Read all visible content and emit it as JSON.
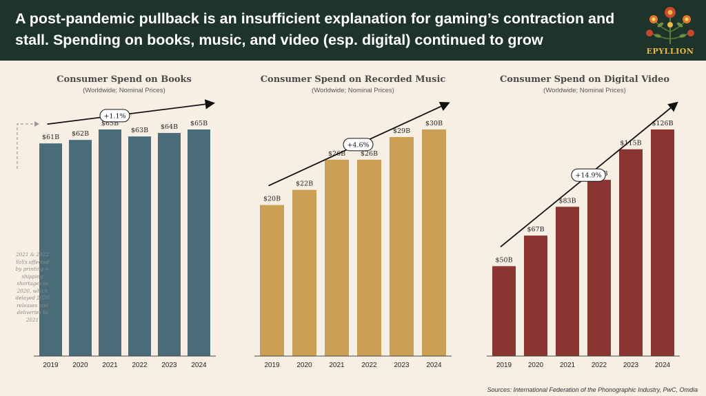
{
  "header": {
    "title": "A post-pandemic pullback is an insufficient explanation for gaming’s contraction and stall. Spending on books, music, and video (esp. digital) continued to grow",
    "logo_text": "EPYLLION"
  },
  "note": "2021 & 2022 YoYs affected by printing + shipping shortages in 2020, which delayed 2020 releases and deliveries to 2021",
  "sources": "Sources: International Federation of the Phonographic Industry, PwC, Omdia",
  "chart_data": [
    {
      "type": "bar",
      "title": "Consumer Spend on Books",
      "subtitle": "(Worldwide; Nominal Prices)",
      "categories": [
        "2019",
        "2020",
        "2021",
        "2022",
        "2023",
        "2024"
      ],
      "values": [
        61,
        62,
        65,
        63,
        64,
        65
      ],
      "labels": [
        "$61B",
        "$62B",
        "$65B",
        "$63B",
        "$64B",
        "$65B"
      ],
      "growth_label": "+1.1%",
      "color": "#4a6b78"
    },
    {
      "type": "bar",
      "title": "Consumer Spend on Recorded Music",
      "subtitle": "(Worldwide; Nominal Prices)",
      "categories": [
        "2019",
        "2020",
        "2021",
        "2022",
        "2023",
        "2024"
      ],
      "values": [
        20,
        22,
        26,
        26,
        29,
        30
      ],
      "labels": [
        "$20B",
        "$22B",
        "$26B",
        "$26B",
        "$29B",
        "$30B"
      ],
      "growth_label": "+4.6%",
      "color": "#c9a055"
    },
    {
      "type": "bar",
      "title": "Consumer Spend on Digital Video",
      "subtitle": "(Worldwide; Nominal Prices)",
      "categories": [
        "2019",
        "2020",
        "2021",
        "2022",
        "2023",
        "2024"
      ],
      "values": [
        50,
        67,
        83,
        98,
        115,
        126
      ],
      "labels": [
        "$50B",
        "$67B",
        "$83B",
        "$98B",
        "$115B",
        "$126B"
      ],
      "growth_label": "+14.9%",
      "color": "#8b3532"
    }
  ]
}
